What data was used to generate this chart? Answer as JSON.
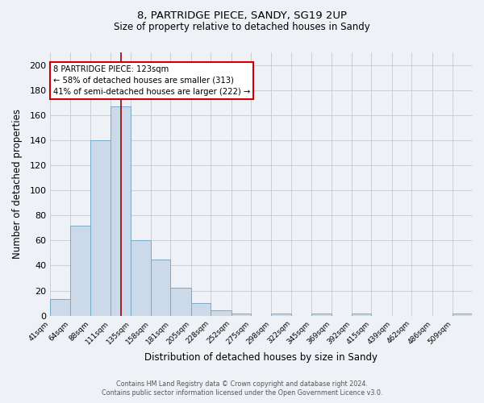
{
  "title1": "8, PARTRIDGE PIECE, SANDY, SG19 2UP",
  "title2": "Size of property relative to detached houses in Sandy",
  "xlabel": "Distribution of detached houses by size in Sandy",
  "ylabel": "Number of detached properties",
  "bar_values": [
    13,
    72,
    140,
    167,
    60,
    45,
    22,
    10,
    4,
    2,
    0,
    2,
    0,
    2,
    0,
    2,
    0,
    0,
    0,
    0,
    2
  ],
  "bin_edges": [
    41,
    64,
    88,
    111,
    135,
    158,
    181,
    205,
    228,
    252,
    275,
    298,
    322,
    345,
    369,
    392,
    415,
    439,
    462,
    486,
    509,
    532
  ],
  "x_tick_labels": [
    "41sqm",
    "64sqm",
    "88sqm",
    "111sqm",
    "135sqm",
    "158sqm",
    "181sqm",
    "205sqm",
    "228sqm",
    "252sqm",
    "275sqm",
    "298sqm",
    "322sqm",
    "345sqm",
    "369sqm",
    "392sqm",
    "415sqm",
    "439sqm",
    "462sqm",
    "486sqm",
    "509sqm"
  ],
  "bar_color": "#ccd9e8",
  "bar_edge_color": "#7aaac8",
  "vline_x": 123,
  "vline_color": "#990000",
  "ylim": [
    0,
    210
  ],
  "yticks": [
    0,
    20,
    40,
    60,
    80,
    100,
    120,
    140,
    160,
    180,
    200
  ],
  "annotation_title": "8 PARTRIDGE PIECE: 123sqm",
  "annotation_line1": "← 58% of detached houses are smaller (313)",
  "annotation_line2": "41% of semi-detached houses are larger (222) →",
  "annotation_box_color": "#ffffff",
  "annotation_border_color": "#cc0000",
  "footer1": "Contains HM Land Registry data © Crown copyright and database right 2024.",
  "footer2": "Contains public sector information licensed under the Open Government Licence v3.0.",
  "bg_color": "#eef2f7",
  "grid_color": "#c8c8d0"
}
